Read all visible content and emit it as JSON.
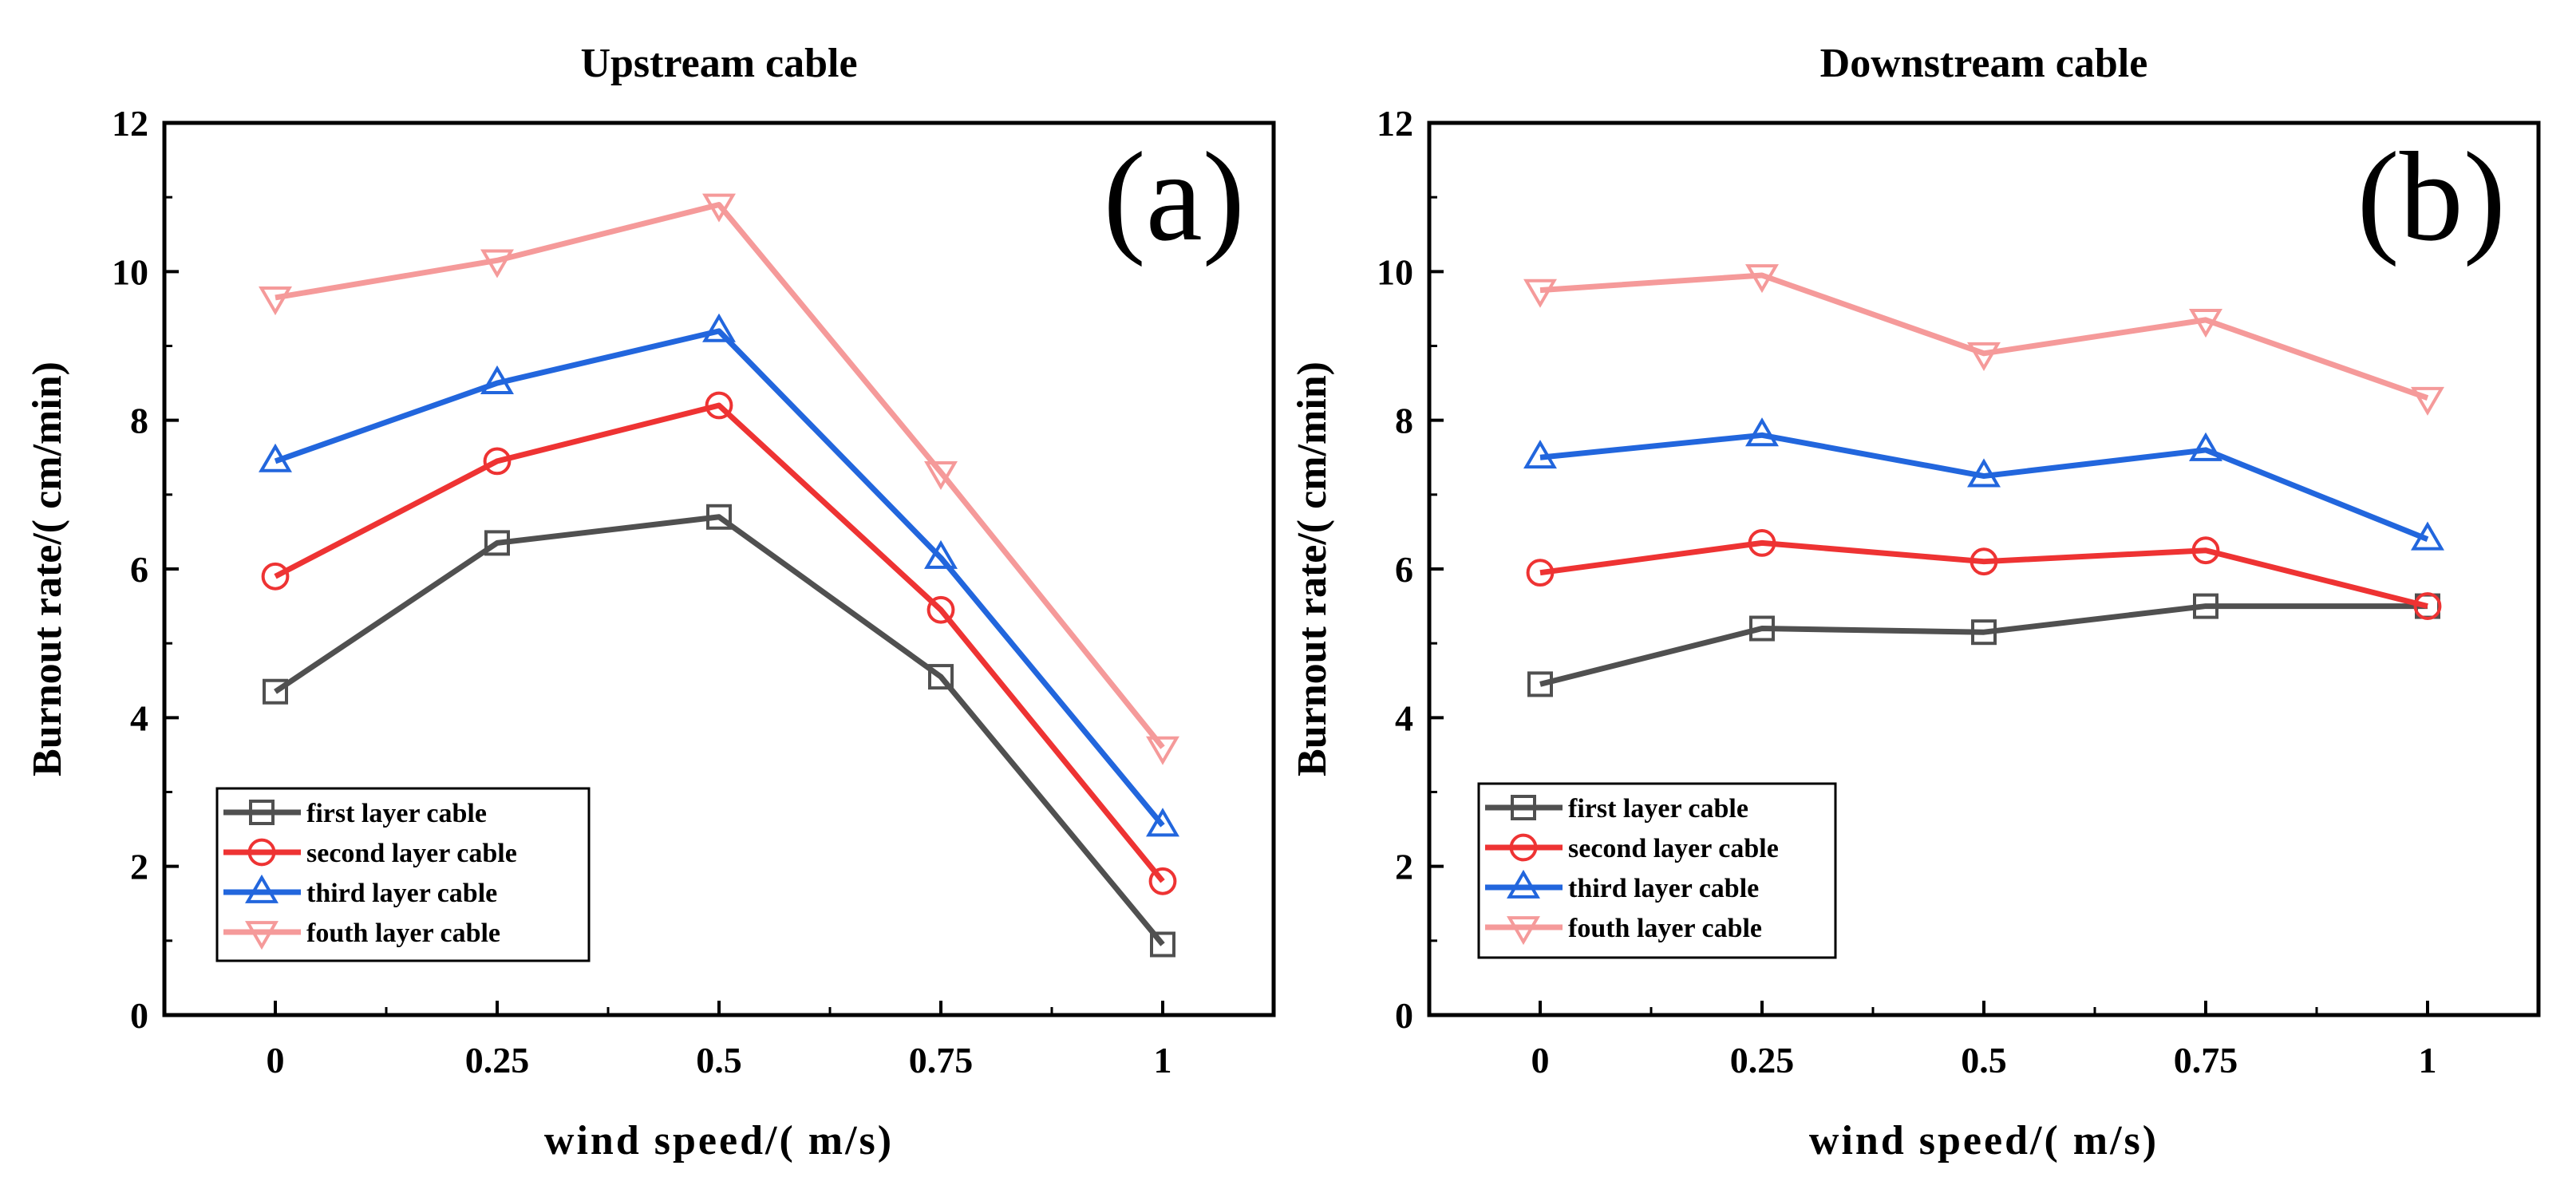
{
  "chart_data": [
    {
      "type": "line",
      "title": "Upstream cable",
      "panel_label": "(a)",
      "xlabel": "wind speed/( m/s)",
      "ylabel": "Burnout rate/( cm/min)",
      "x": [
        0,
        0.25,
        0.5,
        0.75,
        1
      ],
      "x_tick_labels": [
        "0",
        "0.25",
        "0.5",
        "0.75",
        "1"
      ],
      "xlim": [
        -0.125,
        1.125
      ],
      "ylim": [
        0,
        12
      ],
      "y_ticks": [
        0,
        2,
        4,
        6,
        8,
        10,
        12
      ],
      "y_tick_labels": [
        "0",
        "2",
        "4",
        "6",
        "8",
        "10",
        "12"
      ],
      "grid": false,
      "legend_position": "bottom-left",
      "series": [
        {
          "name": "first layer cable",
          "color": "#505050",
          "marker": "square",
          "values": [
            4.35,
            6.35,
            6.7,
            4.55,
            0.95
          ]
        },
        {
          "name": "second layer cable",
          "color": "#ee3333",
          "marker": "circle",
          "values": [
            5.9,
            7.45,
            8.2,
            5.45,
            1.8
          ]
        },
        {
          "name": "third layer cable",
          "color": "#2266dd",
          "marker": "triangle-up",
          "values": [
            7.45,
            8.5,
            9.2,
            6.15,
            2.55
          ]
        },
        {
          "name": "fouth layer cable",
          "color": "#f59a9a",
          "marker": "triangle-down",
          "values": [
            9.65,
            10.15,
            10.9,
            7.3,
            3.6
          ]
        }
      ]
    },
    {
      "type": "line",
      "title": "Downstream cable",
      "panel_label": "(b)",
      "xlabel": "wind speed/( m/s)",
      "ylabel": "Burnout rate/( cm/min)",
      "x": [
        0,
        0.25,
        0.5,
        0.75,
        1
      ],
      "x_tick_labels": [
        "0",
        "0.25",
        "0.5",
        "0.75",
        "1"
      ],
      "xlim": [
        -0.125,
        1.125
      ],
      "ylim": [
        0,
        12
      ],
      "y_ticks": [
        0,
        2,
        4,
        6,
        8,
        10,
        12
      ],
      "y_tick_labels": [
        "0",
        "2",
        "4",
        "6",
        "8",
        "10",
        "12"
      ],
      "grid": false,
      "legend_position": "bottom-left",
      "series": [
        {
          "name": "first layer cable",
          "color": "#505050",
          "marker": "square",
          "values": [
            4.45,
            5.2,
            5.15,
            5.5,
            5.5
          ]
        },
        {
          "name": "second layer cable",
          "color": "#ee3333",
          "marker": "circle",
          "values": [
            5.95,
            6.35,
            6.1,
            6.25,
            5.5
          ]
        },
        {
          "name": "third layer cable",
          "color": "#2266dd",
          "marker": "triangle-up",
          "values": [
            7.5,
            7.8,
            7.25,
            7.6,
            6.4
          ]
        },
        {
          "name": "fouth layer cable",
          "color": "#f59a9a",
          "marker": "triangle-down",
          "values": [
            9.75,
            9.95,
            8.9,
            9.35,
            8.3
          ]
        }
      ]
    }
  ]
}
